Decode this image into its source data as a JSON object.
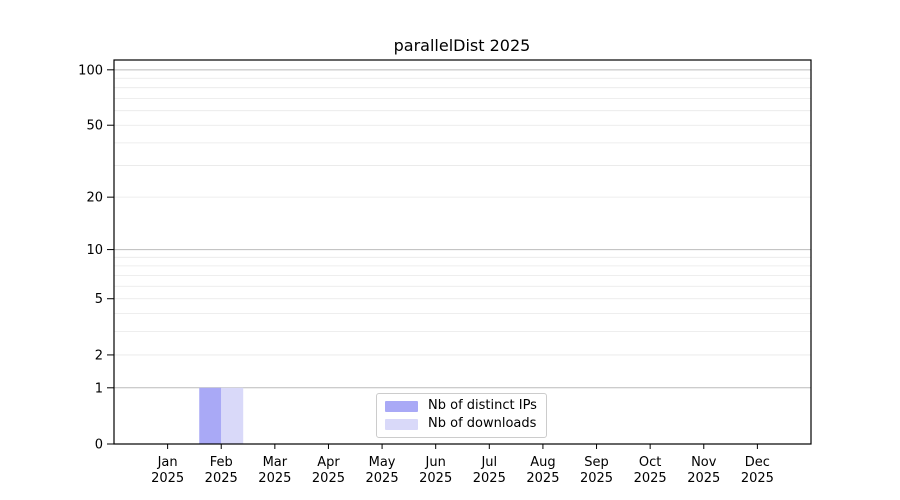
{
  "figure": {
    "background": "#ffffff",
    "text_color": "#000000",
    "axis_color": "#000000"
  },
  "chart_data": {
    "type": "bar",
    "title": "parallelDist 2025",
    "categories": [
      "Jan",
      "Feb",
      "Mar",
      "Apr",
      "May",
      "Jun",
      "Jul",
      "Aug",
      "Sep",
      "Oct",
      "Nov",
      "Dec"
    ],
    "tick_year": "2025",
    "xlabel": "",
    "ylabel": "",
    "yscale": "log1p",
    "ylim": [
      0,
      113
    ],
    "yticks": [
      0,
      1,
      2,
      5,
      10,
      20,
      50,
      100
    ],
    "gridlines": {
      "major": [
        1,
        10,
        100
      ],
      "minor": [
        2,
        3,
        4,
        5,
        6,
        7,
        8,
        9,
        20,
        30,
        40,
        50,
        60,
        70,
        80,
        90
      ],
      "major_color": "#bbbbbb",
      "minor_color": "#e8e8e8"
    },
    "series": [
      {
        "name": "Nb of distinct IPs",
        "color": "#a9a9f6",
        "values": [
          0,
          1,
          0,
          0,
          0,
          0,
          0,
          0,
          0,
          0,
          0,
          0
        ]
      },
      {
        "name": "Nb of downloads",
        "color": "#d9d9f9",
        "values": [
          0,
          1,
          0,
          0,
          0,
          0,
          0,
          0,
          0,
          0,
          0,
          0
        ]
      }
    ],
    "legend_position": "lower-center-inside",
    "legend_border_color": "#cccccc"
  }
}
